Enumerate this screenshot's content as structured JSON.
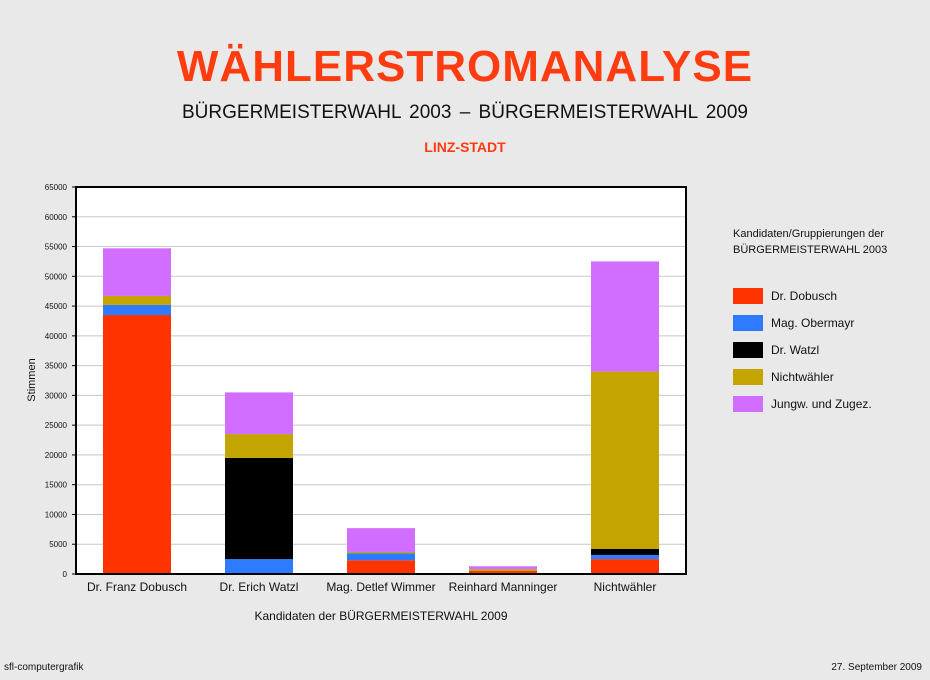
{
  "title": "WÄHLERSTROMANALYSE",
  "subtitle": "BÜRGERMEISTERWAHL  2003  –  BÜRGERMEISTERWAHL  2009",
  "region": "LINZ-STADT",
  "footer": {
    "left": "sfl-computergrafik",
    "right": "27. September 2009"
  },
  "chart_data": {
    "type": "bar",
    "stacked": true,
    "title": "",
    "xlabel": "Kandidaten der BÜRGERMEISTERWAHL 2009",
    "ylabel": "Stimmen",
    "ylim": [
      0,
      65000
    ],
    "ytick_step": 5000,
    "grid": true,
    "legend_title": [
      "Kandidaten/Gruppierungen der",
      "BÜRGERMEISTERWAHL  2003"
    ],
    "legend_position": "right",
    "categories": [
      "Dr. Franz Dobusch",
      "Dr. Erich Watzl",
      "Mag. Detlef Wimmer",
      "Reinhard Manninger",
      "Nichtwähler"
    ],
    "series": [
      {
        "name": "Dr. Dobusch",
        "color": "#ff3300",
        "values": [
          43500,
          0,
          2300,
          500,
          2500
        ]
      },
      {
        "name": "Mag. Obermayr",
        "color": "#2e7bff",
        "values": [
          1700,
          2500,
          1200,
          0,
          700
        ]
      },
      {
        "name": "Dr. Watzl",
        "color": "#000000",
        "values": [
          0,
          17000,
          0,
          0,
          1000
        ]
      },
      {
        "name": "Nichtwähler",
        "color": "#c4a400",
        "values": [
          1500,
          4000,
          200,
          300,
          29800
        ]
      },
      {
        "name": "Jungw. und Zugez.",
        "color": "#d16eff",
        "values": [
          8000,
          7000,
          4000,
          500,
          18500
        ]
      }
    ]
  }
}
